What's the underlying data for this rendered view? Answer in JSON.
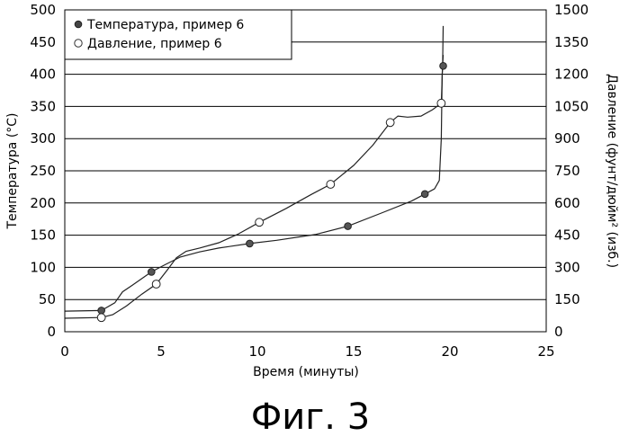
{
  "chart_data": {
    "type": "line",
    "caption": "Фиг. 3",
    "xlabel": "Время (минуты)",
    "ylabel_left": "Температура (°C)",
    "ylabel_right": "Давление (фунт/дюйм² (изб.)",
    "xlim": [
      0,
      25
    ],
    "ylim_left": [
      0,
      500
    ],
    "ylim_right": [
      0,
      1500
    ],
    "x_ticks": [
      "0",
      "5",
      "10",
      "15",
      "20",
      "25"
    ],
    "y_left_ticks": [
      "0",
      "50",
      "100",
      "150",
      "200",
      "250",
      "300",
      "350",
      "400",
      "450",
      "500"
    ],
    "y_right_ticks": [
      "0",
      "150",
      "300",
      "450",
      "600",
      "750",
      "900",
      "1050",
      "1200",
      "1350",
      "1500"
    ],
    "grid": "horizontal",
    "legend_position": "top-left",
    "series": [
      {
        "name": "Температура, пример 6",
        "axis": "left",
        "marker": "filled-circle",
        "markers": [
          {
            "x": 1.9,
            "y": 33
          },
          {
            "x": 4.5,
            "y": 93
          },
          {
            "x": 9.6,
            "y": 137
          },
          {
            "x": 14.7,
            "y": 164
          },
          {
            "x": 18.7,
            "y": 214
          },
          {
            "x": 19.65,
            "y": 413
          }
        ],
        "curve": [
          {
            "x": 0,
            "y": 32
          },
          {
            "x": 1.9,
            "y": 33
          },
          {
            "x": 2.6,
            "y": 45
          },
          {
            "x": 3.0,
            "y": 62
          },
          {
            "x": 3.5,
            "y": 72
          },
          {
            "x": 4.5,
            "y": 93
          },
          {
            "x": 5.2,
            "y": 104
          },
          {
            "x": 6.0,
            "y": 116
          },
          {
            "x": 7.0,
            "y": 124
          },
          {
            "x": 8.0,
            "y": 130
          },
          {
            "x": 9.6,
            "y": 137
          },
          {
            "x": 11.0,
            "y": 142
          },
          {
            "x": 13.0,
            "y": 151
          },
          {
            "x": 14.7,
            "y": 164
          },
          {
            "x": 16.5,
            "y": 185
          },
          {
            "x": 18.0,
            "y": 203
          },
          {
            "x": 18.7,
            "y": 214
          },
          {
            "x": 19.2,
            "y": 222
          },
          {
            "x": 19.45,
            "y": 235
          },
          {
            "x": 19.55,
            "y": 300
          },
          {
            "x": 19.6,
            "y": 400
          },
          {
            "x": 19.65,
            "y": 430
          }
        ]
      },
      {
        "name": "Давление, пример 6",
        "axis": "right",
        "marker": "open-circle",
        "markers": [
          {
            "x": 1.9,
            "y": 66
          },
          {
            "x": 4.75,
            "y": 222
          },
          {
            "x": 10.1,
            "y": 510
          },
          {
            "x": 13.8,
            "y": 687
          },
          {
            "x": 16.9,
            "y": 975
          },
          {
            "x": 19.55,
            "y": 1065
          }
        ],
        "curve": [
          {
            "x": 0,
            "y": 63
          },
          {
            "x": 1.9,
            "y": 66
          },
          {
            "x": 2.5,
            "y": 80
          },
          {
            "x": 3.2,
            "y": 120
          },
          {
            "x": 4.0,
            "y": 175
          },
          {
            "x": 4.75,
            "y": 222
          },
          {
            "x": 5.3,
            "y": 285
          },
          {
            "x": 5.8,
            "y": 345
          },
          {
            "x": 6.3,
            "y": 375
          },
          {
            "x": 7.0,
            "y": 390
          },
          {
            "x": 8.0,
            "y": 415
          },
          {
            "x": 9.0,
            "y": 455
          },
          {
            "x": 10.1,
            "y": 510
          },
          {
            "x": 11.5,
            "y": 575
          },
          {
            "x": 12.8,
            "y": 640
          },
          {
            "x": 13.8,
            "y": 687
          },
          {
            "x": 15.0,
            "y": 775
          },
          {
            "x": 16.0,
            "y": 870
          },
          {
            "x": 16.9,
            "y": 975
          },
          {
            "x": 17.3,
            "y": 1005
          },
          {
            "x": 17.8,
            "y": 1000
          },
          {
            "x": 18.5,
            "y": 1005
          },
          {
            "x": 19.1,
            "y": 1035
          },
          {
            "x": 19.55,
            "y": 1065
          },
          {
            "x": 19.62,
            "y": 1250
          },
          {
            "x": 19.65,
            "y": 1425
          }
        ]
      }
    ]
  }
}
